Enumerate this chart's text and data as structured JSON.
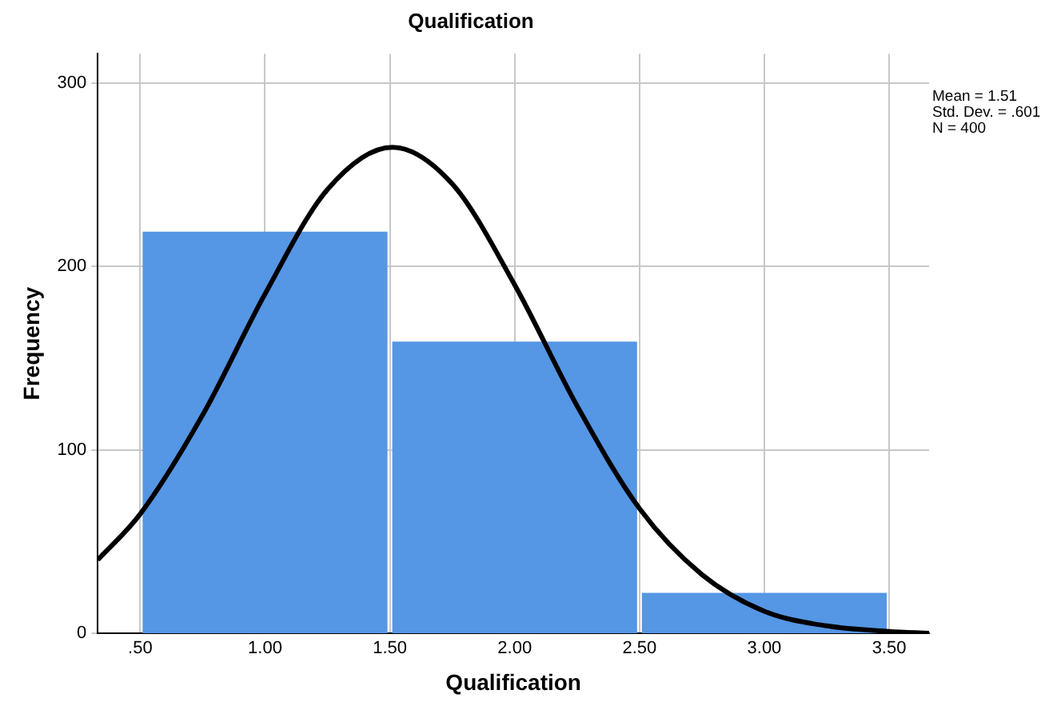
{
  "chart_data": {
    "type": "histogram",
    "title": "Qualification",
    "xlabel": "Qualification",
    "ylabel": "Frequency",
    "bins": [
      0.5,
      1.5,
      2.5,
      3.5
    ],
    "values": [
      219,
      159,
      22
    ],
    "color": "#5596e5",
    "series": [
      {
        "type": "line",
        "color": "#000000",
        "marker": "none",
        "x": [
          0.33,
          0.5,
          0.75,
          1.0,
          1.25,
          1.51,
          1.75,
          2.0,
          2.25,
          2.5,
          2.75,
          3.0,
          3.25,
          3.5,
          3.66
        ],
        "values": [
          40,
          65,
          119,
          185,
          242,
          265,
          245,
          190,
          124,
          68,
          32,
          12,
          4,
          1,
          0
        ]
      }
    ],
    "xlim": [
      0.33,
      3.66
    ],
    "xticks": [
      {
        "value": 0.5,
        "label": ".50"
      },
      {
        "value": 1,
        "label": "1.00"
      },
      {
        "value": 1.5,
        "label": "1.50"
      },
      {
        "value": 2,
        "label": "2.00"
      },
      {
        "value": 2.5,
        "label": "2.50"
      },
      {
        "value": 3,
        "label": "3.00"
      },
      {
        "value": 3.5,
        "label": "3.50"
      }
    ],
    "ylim": [
      0,
      316
    ],
    "yticks": [
      0,
      100,
      200,
      300
    ],
    "grid": true,
    "legend": false,
    "annotations": [
      "Mean = 1.51",
      "Std. Dev. = .601",
      "N = 400"
    ]
  }
}
